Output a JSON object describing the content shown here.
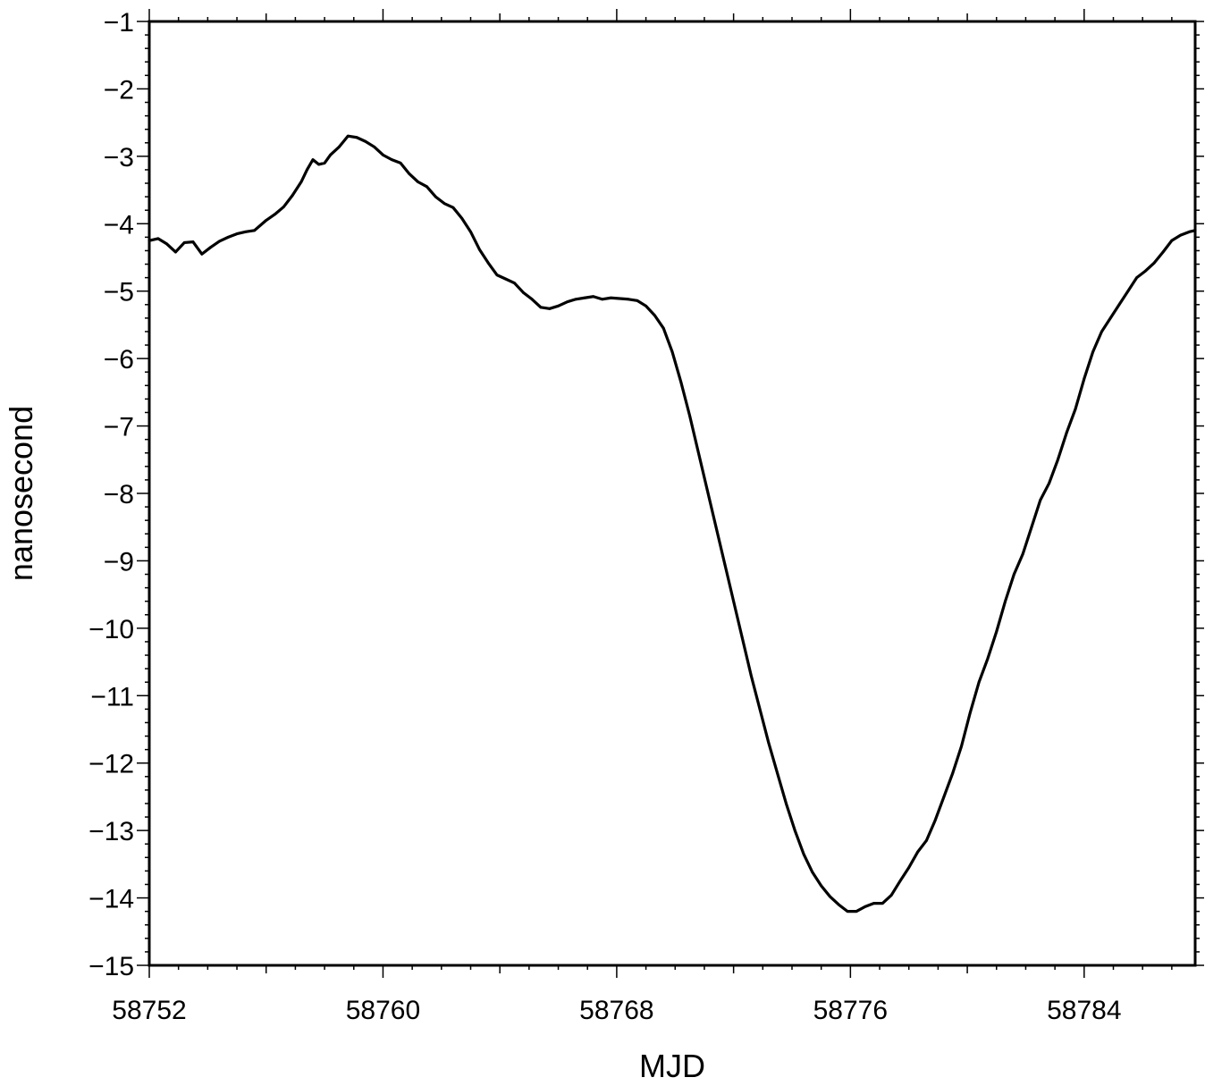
{
  "chart_data": {
    "type": "line",
    "xlabel": "MJD",
    "ylabel": "nanosecond",
    "xlim": [
      58752,
      58787.8
    ],
    "ylim": [
      -15,
      -1
    ],
    "x_ticks": [
      58752,
      58760,
      58768,
      58776,
      58784
    ],
    "x_tick_labels": [
      "58752",
      "58760",
      "58768",
      "58776",
      "58784"
    ],
    "y_ticks": [
      -1,
      -2,
      -3,
      -4,
      -5,
      -6,
      -7,
      -8,
      -9,
      -10,
      -11,
      -12,
      -13,
      -14,
      -15
    ],
    "y_tick_labels": [
      "−1",
      "−2",
      "−3",
      "−4",
      "−5",
      "−6",
      "−7",
      "−8",
      "−9",
      "−10",
      "−11",
      "−12",
      "−13",
      "−14",
      "−15"
    ],
    "grid": false,
    "series": [
      {
        "color": "#000000",
        "x": [
          58752.0,
          58752.3,
          58752.6,
          58752.9,
          58753.2,
          58753.5,
          58753.8,
          58754.1,
          58754.4,
          58754.7,
          58755.0,
          58755.3,
          58755.6,
          58756.0,
          58756.3,
          58756.6,
          58756.9,
          58757.2,
          58757.4,
          58757.6,
          58757.8,
          58758.0,
          58758.2,
          58758.5,
          58758.8,
          58759.1,
          58759.4,
          58759.7,
          58760.0,
          58760.3,
          58760.6,
          58760.9,
          58761.2,
          58761.5,
          58761.8,
          58762.1,
          58762.4,
          58762.7,
          58763.0,
          58763.3,
          58763.6,
          58763.9,
          58764.2,
          58764.5,
          58764.8,
          58765.1,
          58765.4,
          58765.7,
          58766.0,
          58766.3,
          58766.6,
          58766.9,
          58767.2,
          58767.5,
          58767.8,
          58768.1,
          58768.4,
          58768.7,
          58769.0,
          58769.3,
          58769.6,
          58769.9,
          58770.2,
          58770.5,
          58770.8,
          58771.1,
          58771.4,
          58771.7,
          58772.0,
          58772.3,
          58772.6,
          58772.9,
          58773.2,
          58773.5,
          58773.8,
          58774.1,
          58774.4,
          58774.7,
          58775.0,
          58775.3,
          58775.6,
          58775.9,
          58776.2,
          58776.5,
          58776.8,
          58777.1,
          58777.4,
          58777.7,
          58778.0,
          58778.3,
          58778.6,
          58778.9,
          58779.2,
          58779.5,
          58779.8,
          58780.1,
          58780.4,
          58780.7,
          58781.0,
          58781.3,
          58781.6,
          58781.9,
          58782.2,
          58782.5,
          58782.8,
          58783.1,
          58783.4,
          58783.7,
          58784.0,
          58784.3,
          58784.6,
          58784.9,
          58785.2,
          58785.5,
          58785.8,
          58786.1,
          58786.4,
          58786.7,
          58787.0,
          58787.3,
          58787.6,
          58787.8
        ],
        "y": [
          -4.25,
          -4.22,
          -4.3,
          -4.42,
          -4.28,
          -4.27,
          -4.45,
          -4.35,
          -4.26,
          -4.2,
          -4.15,
          -4.12,
          -4.1,
          -3.95,
          -3.86,
          -3.75,
          -3.58,
          -3.38,
          -3.2,
          -3.05,
          -3.12,
          -3.1,
          -2.98,
          -2.86,
          -2.7,
          -2.72,
          -2.78,
          -2.86,
          -2.98,
          -3.05,
          -3.1,
          -3.26,
          -3.38,
          -3.45,
          -3.6,
          -3.7,
          -3.76,
          -3.92,
          -4.12,
          -4.38,
          -4.58,
          -4.76,
          -4.82,
          -4.88,
          -5.02,
          -5.12,
          -5.24,
          -5.26,
          -5.22,
          -5.16,
          -5.12,
          -5.1,
          -5.08,
          -5.12,
          -5.1,
          -5.11,
          -5.12,
          -5.14,
          -5.22,
          -5.36,
          -5.55,
          -5.9,
          -6.35,
          -6.85,
          -7.4,
          -7.95,
          -8.5,
          -9.05,
          -9.6,
          -10.15,
          -10.7,
          -11.2,
          -11.7,
          -12.15,
          -12.6,
          -13.0,
          -13.35,
          -13.62,
          -13.82,
          -13.98,
          -14.1,
          -14.2,
          -14.2,
          -14.13,
          -14.08,
          -14.08,
          -13.96,
          -13.75,
          -13.55,
          -13.32,
          -13.15,
          -12.85,
          -12.5,
          -12.15,
          -11.75,
          -11.25,
          -10.8,
          -10.45,
          -10.05,
          -9.6,
          -9.2,
          -8.9,
          -8.5,
          -8.1,
          -7.85,
          -7.5,
          -7.1,
          -6.75,
          -6.3,
          -5.9,
          -5.6,
          -5.4,
          -5.2,
          -5.0,
          -4.8,
          -4.7,
          -4.58,
          -4.42,
          -4.25,
          -4.17,
          -4.12,
          -4.1
        ]
      }
    ]
  }
}
